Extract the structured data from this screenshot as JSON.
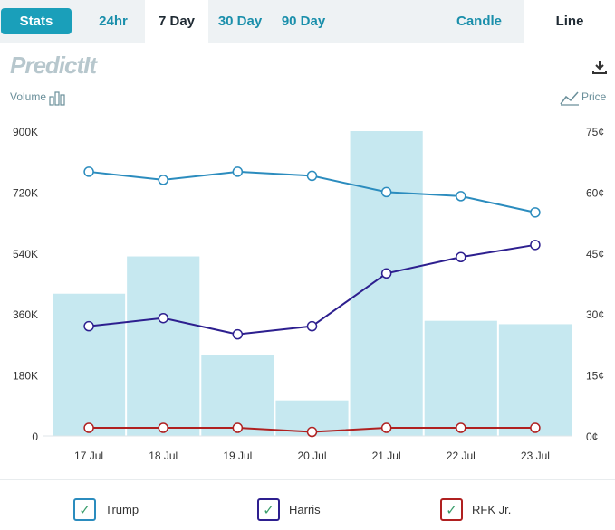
{
  "toolbar": {
    "stats_label": "Stats",
    "tabs": [
      {
        "label": "24hr",
        "active": false
      },
      {
        "label": "7 Day",
        "active": true
      },
      {
        "label": "30 Day",
        "active": false
      },
      {
        "label": "90 Day",
        "active": false
      }
    ],
    "view_tabs": [
      {
        "label": "Candle",
        "active": false
      },
      {
        "label": "Line",
        "active": true
      }
    ]
  },
  "brand": {
    "logo_text": "PredictIt"
  },
  "labels": {
    "volume": "Volume",
    "price": "Price"
  },
  "colors": {
    "accent": "#1a9fba",
    "volume_bar": "#c6e8f0",
    "trump": "#2b8cbe",
    "harris": "#2d1f8f",
    "rfk": "#b02020"
  },
  "icons": {
    "download": "download-icon",
    "volume": "bar-chart-icon",
    "price": "line-chart-icon"
  },
  "chart_data": {
    "type": "bar",
    "categories": [
      "17 Jul",
      "18 Jul",
      "19 Jul",
      "20 Jul",
      "21 Jul",
      "22 Jul",
      "23 Jul"
    ],
    "volume": {
      "values": [
        420000,
        530000,
        240000,
        105000,
        900000,
        340000,
        330000
      ],
      "ylim": [
        0,
        900000
      ],
      "ticks": [
        "0",
        "180K",
        "360K",
        "540K",
        "720K",
        "900K"
      ]
    },
    "price": {
      "ylim": [
        0,
        75
      ],
      "ticks": [
        "0¢",
        "15¢",
        "30¢",
        "45¢",
        "60¢",
        "75¢"
      ],
      "series": [
        {
          "name": "Trump",
          "values": [
            65,
            63,
            65,
            64,
            60,
            59,
            55
          ]
        },
        {
          "name": "Harris",
          "values": [
            27,
            29,
            25,
            27,
            40,
            44,
            47
          ]
        },
        {
          "name": "RFK Jr.",
          "values": [
            2,
            2,
            2,
            1,
            2,
            2,
            2
          ]
        }
      ]
    }
  }
}
